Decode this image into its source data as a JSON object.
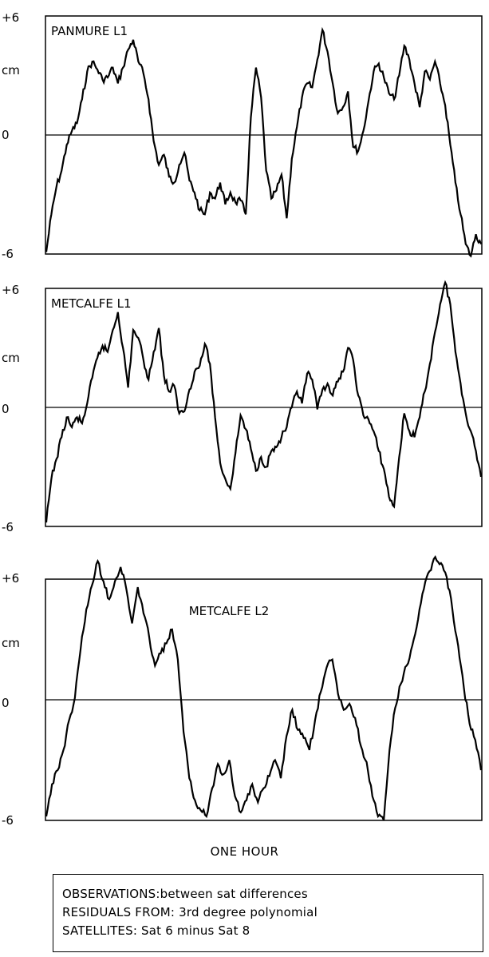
{
  "chart_data": [
    {
      "type": "line",
      "title": "PANMURE L1",
      "ylabel": "cm",
      "ylim": [
        -6,
        6
      ],
      "yticks": [
        "+6",
        "0",
        "-6"
      ],
      "zero_line": true,
      "series": [
        {
          "values": [
            -5.9,
            -4.0,
            -2.6,
            -1.8,
            -0.5,
            0.2,
            0.6,
            1.8,
            3.2,
            3.7,
            3.3,
            2.8,
            2.9,
            3.4,
            2.6,
            3.4,
            4.3,
            4.8,
            3.7,
            3.1,
            1.8,
            -0.3,
            -1.5,
            -1.0,
            -2.1,
            -2.4,
            -1.5,
            -0.9,
            -2.3,
            -2.9,
            -3.8,
            -4.0,
            -2.9,
            -3.2,
            -2.4,
            -3.5,
            -2.9,
            -3.4,
            -3.3,
            -4.0,
            0.9,
            3.4,
            1.9,
            -1.8,
            -3.2,
            -2.8,
            -2.0,
            -4.2,
            -1.2,
            0.4,
            1.9,
            2.6,
            2.4,
            3.8,
            5.3,
            4.2,
            2.6,
            1.1,
            1.4,
            2.2,
            -0.6,
            -0.8,
            0.2,
            1.7,
            3.2,
            3.6,
            2.9,
            2.1,
            1.8,
            3.0,
            4.5,
            3.8,
            2.6,
            1.4,
            3.2,
            2.8,
            3.7,
            2.6,
            1.5,
            -0.5,
            -2.4,
            -4.0,
            -5.5,
            -6.1,
            -5.0,
            -5.5
          ]
        }
      ]
    },
    {
      "type": "line",
      "title": "METCALFE L1",
      "ylabel": "cm",
      "ylim": [
        -6,
        6
      ],
      "yticks": [
        "+6",
        "0",
        "-6"
      ],
      "zero_line": true,
      "series": [
        {
          "values": [
            -5.8,
            -3.6,
            -2.6,
            -1.5,
            -0.5,
            -1.0,
            -0.5,
            -0.8,
            0.2,
            1.5,
            2.5,
            3.1,
            2.8,
            3.9,
            4.8,
            3.0,
            1.0,
            3.9,
            3.5,
            2.4,
            1.4,
            2.8,
            4.0,
            1.6,
            0.8,
            1.1,
            -0.3,
            -0.2,
            0.9,
            1.8,
            2.1,
            3.2,
            2.2,
            -0.5,
            -2.8,
            -3.6,
            -4.1,
            -2.3,
            -0.4,
            -1.1,
            -2.1,
            -3.2,
            -2.5,
            -3.0,
            -2.2,
            -2.0,
            -1.5,
            -1.0,
            0.0,
            0.8,
            0.2,
            1.7,
            1.4,
            -0.1,
            0.9,
            1.2,
            0.6,
            1.3,
            1.8,
            3.0,
            2.4,
            0.6,
            -0.4,
            -0.6,
            -1.2,
            -2.2,
            -3.1,
            -4.5,
            -5.0,
            -2.5,
            -0.3,
            -1.2,
            -1.5,
            -0.5,
            0.8,
            2.2,
            3.8,
            5.2,
            6.3,
            5.2,
            2.8,
            1.2,
            -0.3,
            -1.2,
            -2.2,
            -3.5
          ]
        }
      ]
    },
    {
      "type": "line",
      "title": "METCALFE L2",
      "ylabel": "cm",
      "ylim": [
        -6,
        6
      ],
      "yticks": [
        "+6",
        "0",
        "-6"
      ],
      "zero_line": true,
      "series": [
        {
          "values": [
            -5.8,
            -4.2,
            -3.5,
            -2.5,
            -1.0,
            0.1,
            2.5,
            4.5,
            5.7,
            6.9,
            5.9,
            5.0,
            5.9,
            6.6,
            5.5,
            3.8,
            5.6,
            4.3,
            3.1,
            1.7,
            2.3,
            2.8,
            3.5,
            2.0,
            -1.6,
            -3.9,
            -5.0,
            -5.5,
            -5.8,
            -4.4,
            -3.2,
            -3.7,
            -3.0,
            -4.8,
            -5.6,
            -5.0,
            -4.2,
            -5.1,
            -4.4,
            -3.8,
            -3.0,
            -3.9,
            -1.8,
            -0.5,
            -1.5,
            -1.9,
            -2.5,
            -1.0,
            0.4,
            1.6,
            2.0,
            0.3,
            -0.5,
            -0.2,
            -0.9,
            -2.3,
            -3.1,
            -4.8,
            -5.8,
            -6.0,
            -2.5,
            -0.4,
            0.8,
            1.7,
            2.7,
            4.0,
            5.5,
            6.4,
            7.1,
            6.8,
            6.1,
            4.5,
            2.7,
            0.6,
            -1.2,
            -2.0,
            -3.5
          ]
        }
      ]
    }
  ],
  "xlabel": "ONE HOUR",
  "notes": [
    "OBSERVATIONS:between sat differences",
    "RESIDUALS FROM:  3rd degree polynomial",
    "SATELLITES:  Sat 6 minus Sat 8"
  ]
}
